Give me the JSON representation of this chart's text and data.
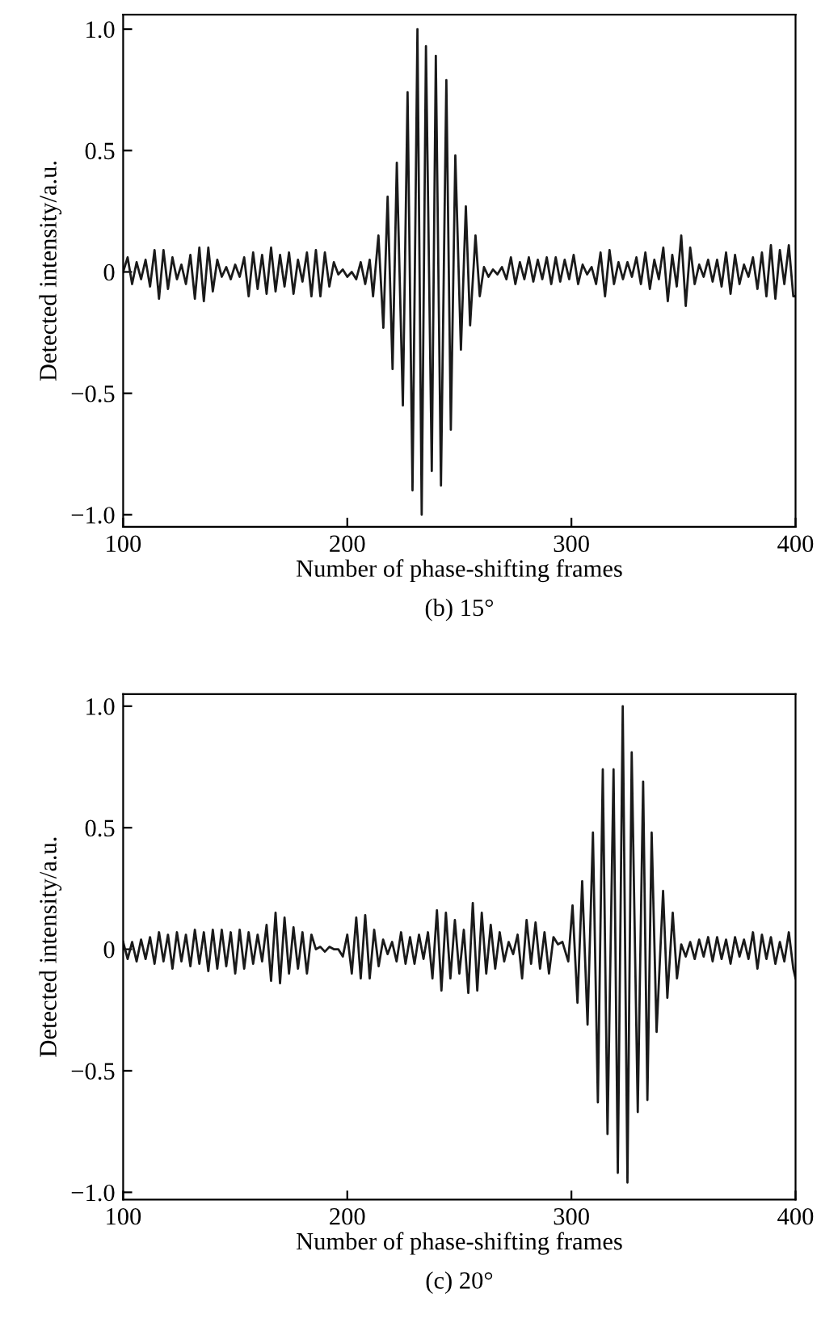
{
  "chart_data": [
    {
      "type": "line",
      "xlabel": "Number of phase-shifting frames",
      "ylabel": "Detected intensity/a.u.",
      "annotations": [
        "(b) 15°"
      ],
      "xlim": [
        100,
        400
      ],
      "xticks": [
        100,
        200,
        300,
        400
      ],
      "ylim": [
        -1.05,
        1.06
      ],
      "yticks": [
        {
          "value": -1,
          "label": "−1.0"
        },
        {
          "value": -0.5,
          "label": "−0.5"
        },
        0,
        {
          "value": 0.5,
          "label": "0.5"
        },
        {
          "value": 1,
          "label": "1.0"
        }
      ],
      "series": [
        {
          "color": "#1a1a1a",
          "x": [
            100,
            102,
            104,
            106,
            108,
            110,
            112,
            114,
            116,
            118,
            120,
            122,
            124,
            126,
            128,
            130,
            132,
            134,
            136,
            138,
            140,
            142,
            144,
            146,
            148,
            150,
            152,
            154,
            156,
            158,
            160,
            162,
            164,
            166,
            168,
            170,
            172,
            174,
            176,
            178,
            180,
            182,
            184,
            186,
            188,
            190,
            192,
            194,
            196,
            198,
            200,
            202,
            204,
            206,
            208,
            210,
            211.5,
            213.9,
            216.1,
            218.0,
            220.2,
            222.1,
            224.8,
            226.9,
            229.1,
            231.3,
            233.2,
            235.1,
            237.7,
            239.5,
            241.8,
            244.2,
            246.2,
            248.2,
            250.7,
            252.9,
            254.8,
            257.2,
            259.1,
            261,
            263,
            265,
            267,
            269,
            271,
            273,
            275,
            277,
            279,
            281,
            283,
            285,
            287,
            289,
            291,
            293,
            295,
            297,
            299,
            301,
            303,
            305,
            307,
            309,
            311,
            313,
            315,
            317,
            319,
            321,
            323,
            325,
            327,
            329,
            331,
            333,
            335,
            337,
            339,
            341,
            343,
            345,
            347,
            349,
            351,
            353,
            355,
            357,
            359,
            361,
            363,
            365,
            367,
            369,
            371,
            373,
            375,
            377,
            379,
            381,
            383,
            385,
            387,
            389,
            391,
            393,
            395,
            397,
            399,
            400
          ],
          "values": [
            0.0,
            0.06,
            -0.05,
            0.04,
            -0.03,
            0.05,
            -0.06,
            0.09,
            -0.11,
            0.09,
            -0.07,
            0.06,
            -0.03,
            0.03,
            -0.05,
            0.07,
            -0.11,
            0.1,
            -0.12,
            0.1,
            -0.08,
            0.05,
            -0.02,
            0.02,
            -0.03,
            0.03,
            -0.02,
            0.06,
            -0.1,
            0.08,
            -0.07,
            0.07,
            -0.09,
            0.1,
            -0.08,
            0.07,
            -0.06,
            0.08,
            -0.09,
            0.05,
            -0.04,
            0.08,
            -0.1,
            0.09,
            -0.1,
            0.08,
            -0.06,
            0.04,
            -0.01,
            0.01,
            -0.02,
            0.0,
            -0.03,
            0.04,
            -0.05,
            0.05,
            -0.1,
            0.15,
            -0.23,
            0.31,
            -0.4,
            0.45,
            -0.55,
            0.74,
            -0.9,
            1.0,
            -1.0,
            0.93,
            -0.82,
            0.89,
            -0.88,
            0.79,
            -0.65,
            0.48,
            -0.32,
            0.27,
            -0.22,
            0.15,
            -0.1,
            0.02,
            -0.02,
            0.01,
            -0.01,
            0.02,
            -0.03,
            0.06,
            -0.05,
            0.04,
            -0.03,
            0.06,
            -0.04,
            0.05,
            -0.03,
            0.06,
            -0.05,
            0.06,
            -0.04,
            0.05,
            -0.03,
            0.07,
            -0.05,
            0.03,
            -0.01,
            0.02,
            -0.05,
            0.08,
            -0.1,
            0.09,
            -0.05,
            0.04,
            -0.03,
            0.04,
            -0.02,
            0.06,
            -0.05,
            0.08,
            -0.07,
            0.05,
            -0.03,
            0.1,
            -0.12,
            0.07,
            -0.06,
            0.15,
            -0.14,
            0.1,
            -0.05,
            0.03,
            -0.02,
            0.05,
            -0.04,
            0.05,
            -0.06,
            0.08,
            -0.09,
            0.07,
            -0.05,
            0.03,
            -0.02,
            0.06,
            -0.07,
            0.08,
            -0.1,
            0.11,
            -0.11,
            0.09,
            -0.05,
            0.11,
            -0.1,
            -0.1
          ]
        }
      ]
    },
    {
      "type": "line",
      "xlabel": "Number of phase-shifting frames",
      "ylabel": "Detected intensity/a.u.",
      "annotations": [
        "(c) 20°"
      ],
      "xlim": [
        100,
        400
      ],
      "xticks": [
        100,
        200,
        300,
        400
      ],
      "ylim": [
        -1.03,
        1.05
      ],
      "yticks": [
        {
          "value": -1,
          "label": "−1.0"
        },
        {
          "value": -0.5,
          "label": "−0.5"
        },
        0,
        {
          "value": 0.5,
          "label": "0.5"
        },
        {
          "value": 1,
          "label": "1.0"
        }
      ],
      "series": [
        {
          "color": "#1a1a1a",
          "x": [
            100,
            102,
            104,
            106,
            108,
            110,
            112,
            114,
            116,
            118,
            120,
            122,
            124,
            126,
            128,
            130,
            132,
            134,
            136,
            138,
            140,
            142,
            144,
            146,
            148,
            150,
            152,
            154,
            156,
            158,
            160,
            162,
            164,
            166,
            168,
            170,
            172,
            174,
            176,
            178,
            180,
            182,
            184,
            186,
            188,
            190,
            192,
            194,
            196,
            198,
            200,
            202,
            204,
            206,
            208,
            210,
            212,
            214,
            216,
            218,
            220,
            222,
            224,
            226,
            228,
            230,
            232,
            234,
            236,
            238,
            240,
            242,
            244,
            246,
            248,
            250,
            252,
            254,
            256,
            258,
            260,
            262,
            264,
            266,
            268,
            270,
            272,
            274,
            276,
            278,
            280,
            282,
            284,
            286,
            288,
            290,
            292,
            294,
            296,
            298.6,
            300.5,
            302.7,
            304.8,
            307.2,
            309.6,
            311.8,
            314.0,
            316.1,
            318.8,
            320.7,
            322.9,
            325.0,
            326.9,
            329.6,
            332.0,
            333.9,
            335.8,
            338.0,
            340.9,
            342.8,
            345.2,
            347.1,
            349,
            351,
            353,
            355,
            357,
            359,
            361,
            363,
            365,
            367,
            369,
            371,
            373,
            375,
            377,
            379,
            381,
            383,
            385,
            387,
            389,
            391,
            393,
            395,
            397,
            399,
            400
          ],
          "values": [
            0.03,
            -0.04,
            0.03,
            -0.05,
            0.04,
            -0.04,
            0.05,
            -0.06,
            0.07,
            -0.05,
            0.06,
            -0.08,
            0.07,
            -0.05,
            0.06,
            -0.07,
            0.08,
            -0.06,
            0.07,
            -0.09,
            0.08,
            -0.08,
            0.08,
            -0.07,
            0.07,
            -0.1,
            0.08,
            -0.08,
            0.07,
            -0.06,
            0.06,
            -0.05,
            0.1,
            -0.13,
            0.15,
            -0.14,
            0.13,
            -0.1,
            0.09,
            -0.08,
            0.07,
            -0.1,
            0.06,
            0.0,
            0.01,
            -0.01,
            0.01,
            0.0,
            0.0,
            -0.03,
            0.06,
            -0.1,
            0.13,
            -0.12,
            0.14,
            -0.12,
            0.08,
            -0.07,
            0.04,
            -0.02,
            0.03,
            -0.05,
            0.07,
            -0.06,
            0.05,
            -0.06,
            0.06,
            -0.04,
            0.07,
            -0.12,
            0.16,
            -0.17,
            0.15,
            -0.12,
            0.12,
            -0.1,
            0.08,
            -0.18,
            0.19,
            -0.17,
            0.15,
            -0.1,
            0.1,
            -0.08,
            0.07,
            -0.05,
            0.03,
            -0.02,
            0.06,
            -0.12,
            0.12,
            -0.06,
            0.11,
            -0.08,
            0.07,
            -0.1,
            0.05,
            0.02,
            0.03,
            -0.05,
            0.18,
            -0.22,
            0.28,
            -0.31,
            0.48,
            -0.63,
            0.74,
            -0.76,
            0.74,
            -0.92,
            1.0,
            -0.96,
            0.81,
            -0.67,
            0.69,
            -0.62,
            0.48,
            -0.34,
            0.24,
            -0.2,
            0.15,
            -0.12,
            0.02,
            -0.03,
            0.03,
            -0.04,
            0.04,
            -0.03,
            0.05,
            -0.05,
            0.05,
            -0.04,
            0.04,
            -0.06,
            0.05,
            -0.03,
            0.04,
            -0.04,
            0.07,
            -0.08,
            0.06,
            -0.04,
            0.05,
            -0.06,
            0.03,
            -0.05,
            0.07,
            -0.08,
            -0.12
          ]
        }
      ]
    }
  ]
}
